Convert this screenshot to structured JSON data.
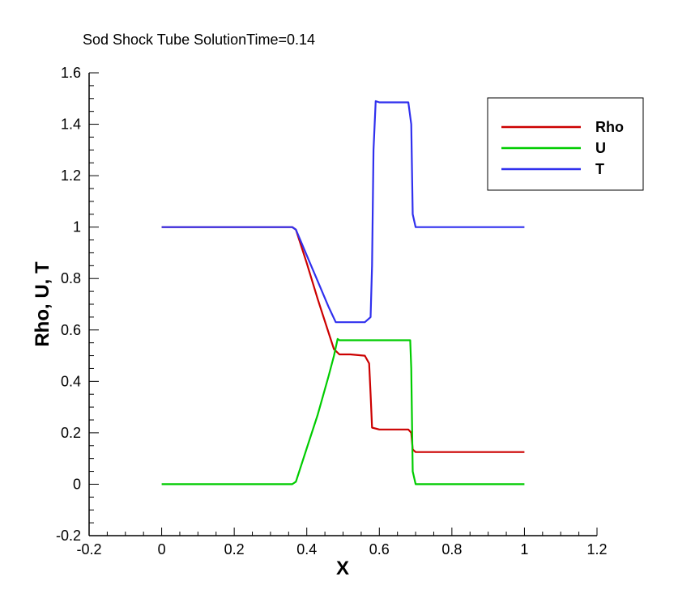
{
  "chart_data": {
    "type": "line",
    "title": "Sod Shock Tube SolutionTime=0.14",
    "xlabel": "X",
    "ylabel": "Rho, U, T",
    "xlim": [
      -0.2,
      1.2
    ],
    "ylim": [
      -0.2,
      1.6
    ],
    "xticks": [
      "-0.2",
      "0",
      "0.2",
      "0.4",
      "0.6",
      "0.8",
      "1",
      "1.2"
    ],
    "yticks": [
      "-0.2",
      "0",
      "0.2",
      "0.4",
      "0.6",
      "0.8",
      "1",
      "1.2",
      "1.4",
      "1.6"
    ],
    "legend_position": "top-right",
    "grid": false,
    "series": [
      {
        "name": "Rho",
        "color": "#cc0000",
        "x": [
          0,
          0.2,
          0.36,
          0.37,
          0.4,
          0.43,
          0.46,
          0.475,
          0.49,
          0.52,
          0.56,
          0.572,
          0.576,
          0.58,
          0.6,
          0.68,
          0.688,
          0.692,
          0.7,
          0.8,
          1.0
        ],
        "y": [
          1.0,
          1.0,
          1.0,
          0.99,
          0.86,
          0.72,
          0.59,
          0.525,
          0.505,
          0.505,
          0.5,
          0.47,
          0.35,
          0.22,
          0.213,
          0.213,
          0.2,
          0.135,
          0.125,
          0.125,
          0.125
        ]
      },
      {
        "name": "U",
        "color": "#00cc00",
        "x": [
          0,
          0.2,
          0.36,
          0.37,
          0.4,
          0.43,
          0.46,
          0.475,
          0.485,
          0.49,
          0.52,
          0.6,
          0.685,
          0.688,
          0.692,
          0.7,
          0.8,
          1.0
        ],
        "y": [
          0.0,
          0.0,
          0.0,
          0.01,
          0.14,
          0.27,
          0.42,
          0.5,
          0.565,
          0.56,
          0.56,
          0.56,
          0.56,
          0.45,
          0.05,
          0.0,
          0.0,
          0.0
        ]
      },
      {
        "name": "T",
        "color": "#3030ee",
        "x": [
          0,
          0.2,
          0.36,
          0.37,
          0.4,
          0.43,
          0.46,
          0.48,
          0.52,
          0.56,
          0.576,
          0.58,
          0.584,
          0.59,
          0.6,
          0.65,
          0.68,
          0.688,
          0.692,
          0.7,
          0.8,
          1.0
        ],
        "y": [
          1.0,
          1.0,
          1.0,
          0.99,
          0.89,
          0.79,
          0.69,
          0.63,
          0.63,
          0.63,
          0.65,
          0.85,
          1.3,
          1.49,
          1.485,
          1.485,
          1.485,
          1.4,
          1.05,
          1.0,
          1.0,
          1.0
        ]
      }
    ]
  }
}
